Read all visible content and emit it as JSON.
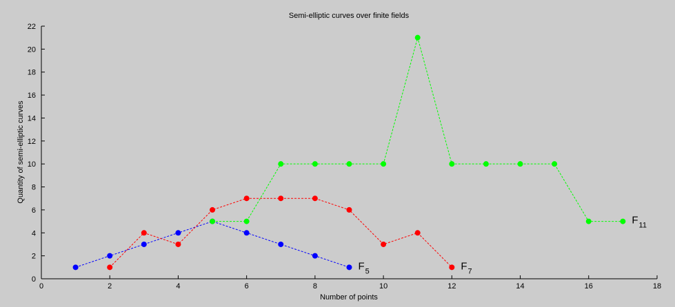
{
  "chart_data": {
    "type": "line",
    "title": "Semi-elliptic curves over finite fields",
    "xlabel": "Number of points",
    "ylabel": "Quantity of semi-elliptic curves",
    "xlim": [
      0,
      18
    ],
    "ylim": [
      0,
      22
    ],
    "xticks": [
      0,
      2,
      4,
      6,
      8,
      10,
      12,
      14,
      16,
      18
    ],
    "yticks": [
      0,
      2,
      4,
      6,
      8,
      10,
      12,
      14,
      16,
      18,
      20,
      22
    ],
    "grid": false,
    "series": [
      {
        "name": "F5",
        "label_main": "F",
        "label_sub": "5",
        "color": "#0000ff",
        "line_style": "dashed",
        "x": [
          1,
          2,
          3,
          4,
          5,
          6,
          7,
          8,
          9
        ],
        "y": [
          1,
          2,
          3,
          4,
          5,
          4,
          3,
          2,
          1
        ]
      },
      {
        "name": "F7",
        "label_main": "F",
        "label_sub": "7",
        "color": "#ff0000",
        "line_style": "dashed",
        "x": [
          2,
          3,
          4,
          5,
          6,
          7,
          8,
          9,
          10,
          11,
          12
        ],
        "y": [
          1,
          4,
          3,
          6,
          7,
          7,
          7,
          6,
          3,
          4,
          1
        ]
      },
      {
        "name": "F11",
        "label_main": "F",
        "label_sub": "11",
        "color": "#00ff00",
        "line_style": "dashed",
        "x": [
          5,
          6,
          7,
          8,
          9,
          10,
          11,
          12,
          13,
          14,
          15,
          16,
          17
        ],
        "y": [
          5,
          5,
          10,
          10,
          10,
          10,
          21,
          10,
          10,
          10,
          10,
          5,
          5
        ]
      }
    ]
  }
}
